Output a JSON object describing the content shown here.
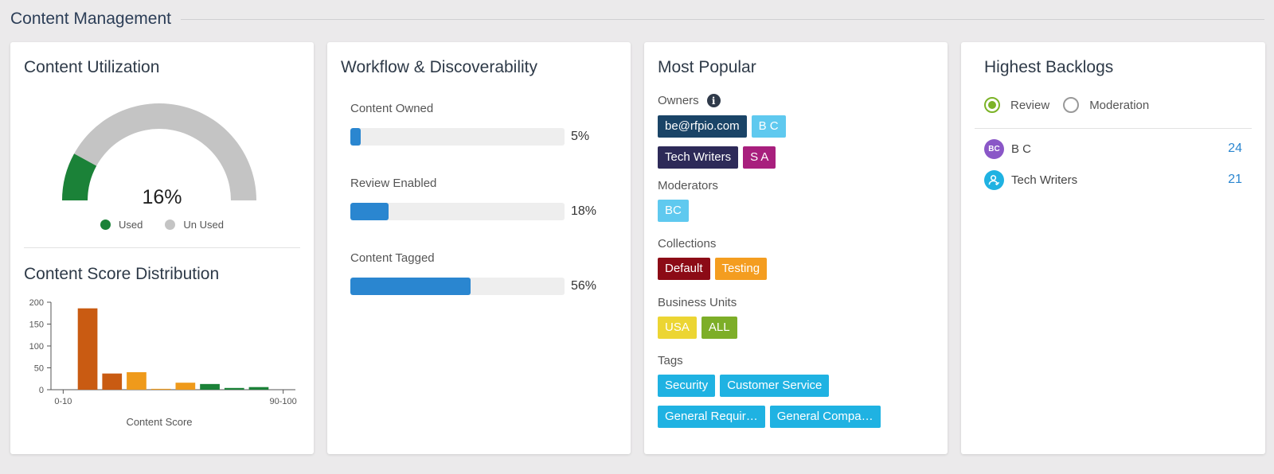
{
  "section": {
    "title": "Content Management"
  },
  "utilization": {
    "title": "Content Utilization",
    "used_fraction": 0.16,
    "percent_label": "16%",
    "legend": [
      {
        "label": "Used",
        "color": "#1b8238"
      },
      {
        "label": "Un Used",
        "color": "#c4c4c4"
      }
    ]
  },
  "distribution": {
    "title": "Content Score Distribution",
    "chart_data": {
      "type": "bar",
      "xlabel": "Content Score",
      "ylabel": "",
      "ylim": [
        0,
        200
      ],
      "yticks": [
        "0",
        "50",
        "100",
        "150",
        "200"
      ],
      "x_tick_labels": [
        "0-10",
        "90-100"
      ],
      "categories": [
        "0-10",
        "10-20",
        "20-30",
        "30-40",
        "40-50",
        "50-60",
        "60-70",
        "70-80",
        "80-90",
        "90-100"
      ],
      "values": [
        0,
        186,
        37,
        40,
        2,
        16,
        13,
        4,
        6,
        0
      ],
      "colors": [
        "#c95b12",
        "#c95b12",
        "#c95b12",
        "#ef9a1b",
        "#ef9a1b",
        "#ef9a1b",
        "#1b8238",
        "#1b8238",
        "#1b8238",
        "#1b8238"
      ]
    }
  },
  "workflow": {
    "title": "Workflow & Discoverability",
    "metrics": [
      {
        "label": "Content Owned",
        "value": 0.05,
        "value_label": "5%"
      },
      {
        "label": "Review Enabled",
        "value": 0.18,
        "value_label": "18%"
      },
      {
        "label": "Content Tagged",
        "value": 0.56,
        "value_label": "56%"
      }
    ]
  },
  "popular": {
    "title": "Most Popular",
    "owners_label": "Owners",
    "info_icon": "info-icon",
    "owners_row1": [
      {
        "label": "be@rfpio.com",
        "color": "#1a4467"
      },
      {
        "label": "B C",
        "color": "#5fc9ef"
      }
    ],
    "owners_row2": [
      {
        "label": "Tech Writers",
        "color": "#2d2a58"
      },
      {
        "label": "S A",
        "color": "#a81f7d"
      }
    ],
    "moderators_label": "Moderators",
    "moderators": [
      {
        "label": "BC",
        "color": "#5fc9ef"
      }
    ],
    "collections_label": "Collections",
    "collections": [
      {
        "label": "Default",
        "color": "#8c0b16"
      },
      {
        "label": "Testing",
        "color": "#f49d20"
      }
    ],
    "business_units_label": "Business Units",
    "business_units": [
      {
        "label": "USA",
        "color": "#ecd533"
      },
      {
        "label": "ALL",
        "color": "#7dae28"
      }
    ],
    "tags_label": "Tags",
    "tags_row1": [
      {
        "label": "Security",
        "color": "#1fb2e2"
      },
      {
        "label": "Customer Service",
        "color": "#1fb2e2"
      }
    ],
    "tags_row2": [
      {
        "label": "General Requir…",
        "color": "#1fb2e2"
      },
      {
        "label": "General Compa…",
        "color": "#1fb2e2"
      }
    ]
  },
  "backlogs": {
    "title": "Highest Backlogs",
    "options": {
      "review": "Review",
      "moderation": "Moderation"
    },
    "selected": "Review",
    "items": [
      {
        "avatar": "BC",
        "avatar_color": "#8a57c7",
        "name": "B C",
        "count": "24"
      },
      {
        "avatar_icon": "user-group-icon",
        "avatar_color": "#1fb2e2",
        "name": "Tech Writers",
        "count": "21"
      }
    ]
  }
}
